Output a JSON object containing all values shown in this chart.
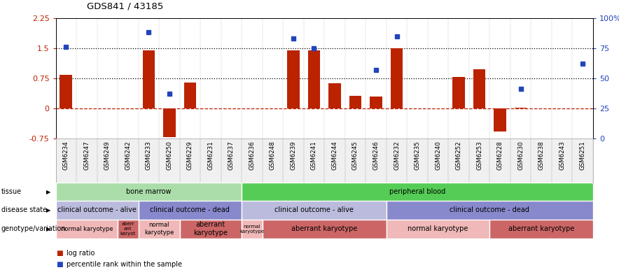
{
  "title": "GDS841 / 43185",
  "samples": [
    "GSM6234",
    "GSM6247",
    "GSM6249",
    "GSM6242",
    "GSM6233",
    "GSM6250",
    "GSM6229",
    "GSM6231",
    "GSM6237",
    "GSM6236",
    "GSM6248",
    "GSM6239",
    "GSM6241",
    "GSM6244",
    "GSM6245",
    "GSM6246",
    "GSM6232",
    "GSM6235",
    "GSM6240",
    "GSM6252",
    "GSM6253",
    "GSM6228",
    "GSM6230",
    "GSM6238",
    "GSM6243",
    "GSM6251"
  ],
  "log_ratio": [
    0.83,
    0.0,
    0.0,
    0.0,
    1.44,
    -0.72,
    0.65,
    0.0,
    0.0,
    0.0,
    0.0,
    1.44,
    1.44,
    0.63,
    0.32,
    0.3,
    1.5,
    0.0,
    0.0,
    0.78,
    0.98,
    -0.58,
    0.02,
    0.0,
    0.0,
    0.0
  ],
  "percentile": [
    76,
    0,
    0,
    0,
    88,
    37,
    0,
    0,
    0,
    0,
    0,
    83,
    75,
    0,
    0,
    57,
    85,
    0,
    0,
    0,
    0,
    0,
    41,
    0,
    0,
    62
  ],
  "ylim_left": [
    -0.75,
    2.25
  ],
  "ylim_right": [
    0,
    100
  ],
  "yticks_left": [
    -0.75,
    0,
    0.75,
    1.5,
    2.25
  ],
  "yticks_right": [
    0,
    25,
    50,
    75,
    100
  ],
  "hlines_dotted": [
    1.5,
    0.75
  ],
  "hline_dashed_red": 0.0,
  "tissue_groups": [
    {
      "label": "bone marrow",
      "start": 0,
      "end": 9,
      "color": "#aaddaa"
    },
    {
      "label": "peripheral blood",
      "start": 9,
      "end": 26,
      "color": "#55cc55"
    }
  ],
  "disease_groups": [
    {
      "label": "clinical outcome - alive",
      "start": 0,
      "end": 4,
      "color": "#bbbbdd"
    },
    {
      "label": "clinical outcome - dead",
      "start": 4,
      "end": 9,
      "color": "#8888cc"
    },
    {
      "label": "clinical outcome - alive",
      "start": 9,
      "end": 16,
      "color": "#bbbbdd"
    },
    {
      "label": "clinical outcome - dead",
      "start": 16,
      "end": 26,
      "color": "#8888cc"
    }
  ],
  "genotype_groups": [
    {
      "label": "normal karyotype",
      "start": 0,
      "end": 3,
      "color": "#f0b8b8",
      "fontsize": 6
    },
    {
      "label": "aberr\nant\nkaryot",
      "start": 3,
      "end": 4,
      "color": "#cc6666",
      "fontsize": 5
    },
    {
      "label": "normal\nkaryotype",
      "start": 4,
      "end": 6,
      "color": "#f0b8b8",
      "fontsize": 6
    },
    {
      "label": "aberrant\nkaryotype",
      "start": 6,
      "end": 9,
      "color": "#cc6666",
      "fontsize": 7
    },
    {
      "label": "normal\nkaryotype",
      "start": 9,
      "end": 10,
      "color": "#f0b8b8",
      "fontsize": 5
    },
    {
      "label": "aberrant karyotype",
      "start": 10,
      "end": 16,
      "color": "#cc6666",
      "fontsize": 7
    },
    {
      "label": "normal karyotype",
      "start": 16,
      "end": 21,
      "color": "#f0b8b8",
      "fontsize": 7
    },
    {
      "label": "aberrant karyotype",
      "start": 21,
      "end": 26,
      "color": "#cc6666",
      "fontsize": 7
    }
  ],
  "bar_color": "#bb2200",
  "dot_color": "#2244bb",
  "legend_items": [
    {
      "color": "#bb2200",
      "label": "log ratio"
    },
    {
      "color": "#2244bb",
      "label": "percentile rank within the sample"
    }
  ]
}
